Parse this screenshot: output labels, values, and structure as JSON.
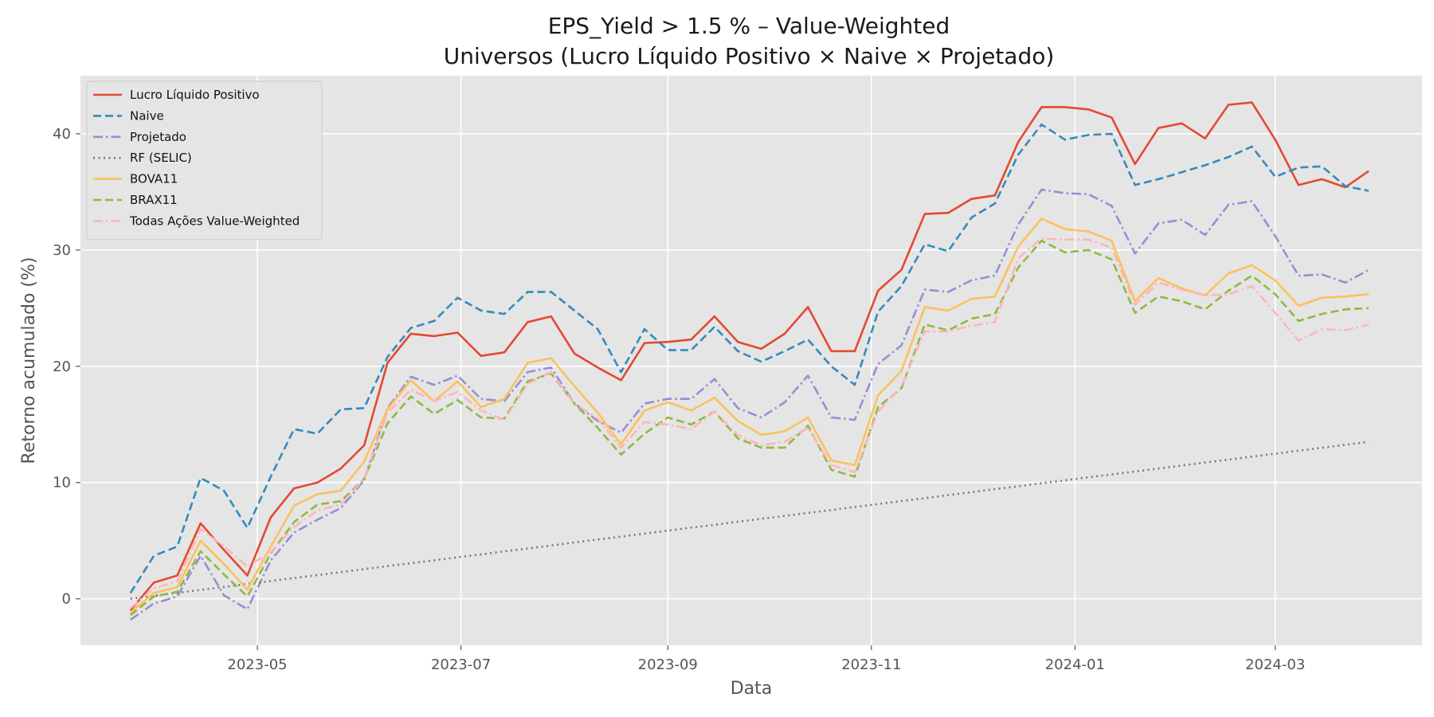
{
  "chart_data": {
    "type": "line",
    "title": "EPS_Yield > 1.5 % – Value-Weighted",
    "subtitle": "Universos (Lucro Líquido Positivo × Naive × Projetado)",
    "xlabel": "Data",
    "ylabel": "Retorno acumulado (%)",
    "x_axis_type": "date",
    "xlim": [
      "2023-03-09",
      "2024-04-14"
    ],
    "ylim": [
      -4,
      45
    ],
    "x_ticks": [
      {
        "date": "2023-05-01",
        "label": "2023-05"
      },
      {
        "date": "2023-07-01",
        "label": "2023-07"
      },
      {
        "date": "2023-09-01",
        "label": "2023-09"
      },
      {
        "date": "2023-11-01",
        "label": "2023-11"
      },
      {
        "date": "2024-01-01",
        "label": "2024-01"
      },
      {
        "date": "2024-03-01",
        "label": "2024-03"
      }
    ],
    "y_ticks": [
      0,
      10,
      20,
      30,
      40
    ],
    "grid": true,
    "legend_position": "top-left",
    "background_color": "#e5e5e5",
    "grid_color": "#ffffff",
    "x": [
      "2023-03-24",
      "2023-03-31",
      "2023-04-07",
      "2023-04-14",
      "2023-04-21",
      "2023-04-28",
      "2023-05-05",
      "2023-05-12",
      "2023-05-19",
      "2023-05-26",
      "2023-06-02",
      "2023-06-09",
      "2023-06-16",
      "2023-06-23",
      "2023-06-30",
      "2023-07-07",
      "2023-07-14",
      "2023-07-21",
      "2023-07-28",
      "2023-08-04",
      "2023-08-11",
      "2023-08-18",
      "2023-08-25",
      "2023-09-01",
      "2023-09-08",
      "2023-09-15",
      "2023-09-22",
      "2023-09-29",
      "2023-10-06",
      "2023-10-13",
      "2023-10-20",
      "2023-10-27",
      "2023-11-03",
      "2023-11-10",
      "2023-11-17",
      "2023-11-24",
      "2023-12-01",
      "2023-12-08",
      "2023-12-15",
      "2023-12-22",
      "2023-12-29",
      "2024-01-05",
      "2024-01-12",
      "2024-01-19",
      "2024-01-26",
      "2024-02-02",
      "2024-02-09",
      "2024-02-16",
      "2024-02-23",
      "2024-03-01",
      "2024-03-08",
      "2024-03-15",
      "2024-03-22",
      "2024-03-29"
    ],
    "series": [
      {
        "name": "Lucro Líquido Positivo",
        "color": "#e24a33",
        "dash": "solid",
        "values": [
          -1.0,
          1.4,
          2.0,
          6.5,
          4.2,
          2.0,
          7.0,
          9.5,
          10.0,
          11.2,
          13.2,
          20.3,
          22.8,
          22.6,
          22.9,
          20.9,
          21.2,
          23.8,
          24.3,
          21.1,
          19.9,
          18.8,
          22.0,
          22.1,
          22.3,
          24.3,
          22.1,
          21.5,
          22.8,
          25.1,
          21.3,
          21.3,
          26.5,
          28.3,
          33.1,
          33.2,
          34.4,
          34.7,
          39.3,
          42.3,
          42.3,
          42.1,
          41.4,
          37.4,
          40.5,
          40.9,
          39.6,
          42.5,
          42.7,
          39.5,
          35.6,
          36.1,
          35.4,
          36.8
        ]
      },
      {
        "name": "Naive",
        "color": "#348abd",
        "dash": "dashed",
        "values": [
          0.5,
          3.7,
          4.5,
          10.4,
          9.3,
          6.1,
          10.5,
          14.6,
          14.2,
          16.3,
          16.4,
          20.8,
          23.3,
          23.9,
          25.9,
          24.8,
          24.5,
          26.4,
          26.4,
          24.8,
          23.2,
          19.5,
          23.2,
          21.4,
          21.4,
          23.4,
          21.3,
          20.4,
          21.3,
          22.3,
          20.0,
          18.4,
          24.7,
          26.9,
          30.5,
          29.9,
          32.8,
          34.0,
          38.2,
          40.8,
          39.5,
          39.9,
          40.0,
          35.6,
          36.1,
          36.7,
          37.3,
          38.0,
          38.9,
          36.3,
          37.1,
          37.2,
          35.5,
          35.1
        ]
      },
      {
        "name": "Projetado",
        "color": "#988ed5",
        "dash": "dashdot",
        "values": [
          -1.8,
          -0.4,
          0.2,
          3.7,
          0.3,
          -0.9,
          3.3,
          5.7,
          6.8,
          7.8,
          10.2,
          16.4,
          19.1,
          18.4,
          19.2,
          17.2,
          17.0,
          19.5,
          19.9,
          16.8,
          15.3,
          14.3,
          16.8,
          17.2,
          17.2,
          18.9,
          16.4,
          15.6,
          16.9,
          19.2,
          15.6,
          15.4,
          20.2,
          21.8,
          26.6,
          26.4,
          27.4,
          27.8,
          32.2,
          35.2,
          34.9,
          34.8,
          33.8,
          29.7,
          32.3,
          32.6,
          31.3,
          33.9,
          34.2,
          31.2,
          27.8,
          27.9,
          27.2,
          28.3
        ]
      },
      {
        "name": "RF (SELIC)",
        "color": "#777777",
        "dash": "dotted",
        "values": [
          0.0,
          0.26,
          0.51,
          0.77,
          1.02,
          1.28,
          1.53,
          1.79,
          2.04,
          2.3,
          2.55,
          2.81,
          3.06,
          3.31,
          3.57,
          3.82,
          4.08,
          4.33,
          4.59,
          4.84,
          5.1,
          5.35,
          5.61,
          5.86,
          6.12,
          6.37,
          6.63,
          6.88,
          7.13,
          7.39,
          7.64,
          7.9,
          8.15,
          8.41,
          8.66,
          8.92,
          9.17,
          9.43,
          9.68,
          9.94,
          10.19,
          10.45,
          10.7,
          10.95,
          11.21,
          11.46,
          11.72,
          11.97,
          12.23,
          12.48,
          12.74,
          12.99,
          13.25,
          13.5
        ]
      },
      {
        "name": "BOVA11",
        "color": "#fbc15e",
        "dash": "solid",
        "values": [
          -1.2,
          0.5,
          1.0,
          5.0,
          3.0,
          0.8,
          4.5,
          8.0,
          9.0,
          9.3,
          11.8,
          16.3,
          18.8,
          17.0,
          18.7,
          16.5,
          17.2,
          20.3,
          20.7,
          18.3,
          16.0,
          13.3,
          16.2,
          16.9,
          16.2,
          17.3,
          15.3,
          14.1,
          14.4,
          15.6,
          11.9,
          11.5,
          17.5,
          19.6,
          25.1,
          24.8,
          25.8,
          26.0,
          30.3,
          32.7,
          31.8,
          31.6,
          30.8,
          25.6,
          27.6,
          26.7,
          26.1,
          28.0,
          28.7,
          27.4,
          25.2,
          25.9,
          26.0,
          26.2
        ]
      },
      {
        "name": "BRAX11",
        "color": "#8eba42",
        "dash": "dashed",
        "values": [
          -1.4,
          0.2,
          0.6,
          4.1,
          2.1,
          0.2,
          3.9,
          6.6,
          8.1,
          8.4,
          10.3,
          15.1,
          17.4,
          15.9,
          17.1,
          15.6,
          15.5,
          18.7,
          19.4,
          16.8,
          14.7,
          12.4,
          14.2,
          15.6,
          15.0,
          16.1,
          13.8,
          13.0,
          13.0,
          14.9,
          11.1,
          10.5,
          16.5,
          18.1,
          23.6,
          23.1,
          24.1,
          24.5,
          28.5,
          30.8,
          29.8,
          30.0,
          29.2,
          24.6,
          26.0,
          25.6,
          24.9,
          26.5,
          27.8,
          26.2,
          23.9,
          24.5,
          24.9,
          25.0
        ]
      },
      {
        "name": "Todas Ações Value-Weighted",
        "color": "#ffb5b8",
        "dash": "dashdot",
        "values": [
          -0.8,
          0.9,
          1.5,
          6.0,
          4.5,
          2.8,
          4.0,
          6.2,
          7.6,
          8.1,
          10.3,
          16.0,
          18.0,
          17.0,
          17.8,
          16.2,
          15.4,
          18.5,
          19.5,
          16.8,
          15.5,
          13.0,
          15.2,
          15.0,
          14.6,
          16.1,
          14.1,
          13.2,
          13.5,
          14.7,
          11.5,
          10.9,
          16.1,
          18.3,
          23.0,
          23.0,
          23.5,
          23.8,
          29.3,
          31.0,
          30.9,
          30.9,
          30.2,
          25.3,
          27.2,
          26.6,
          26.1,
          26.2,
          26.9,
          24.6,
          22.2,
          23.2,
          23.1,
          23.6
        ]
      }
    ]
  }
}
